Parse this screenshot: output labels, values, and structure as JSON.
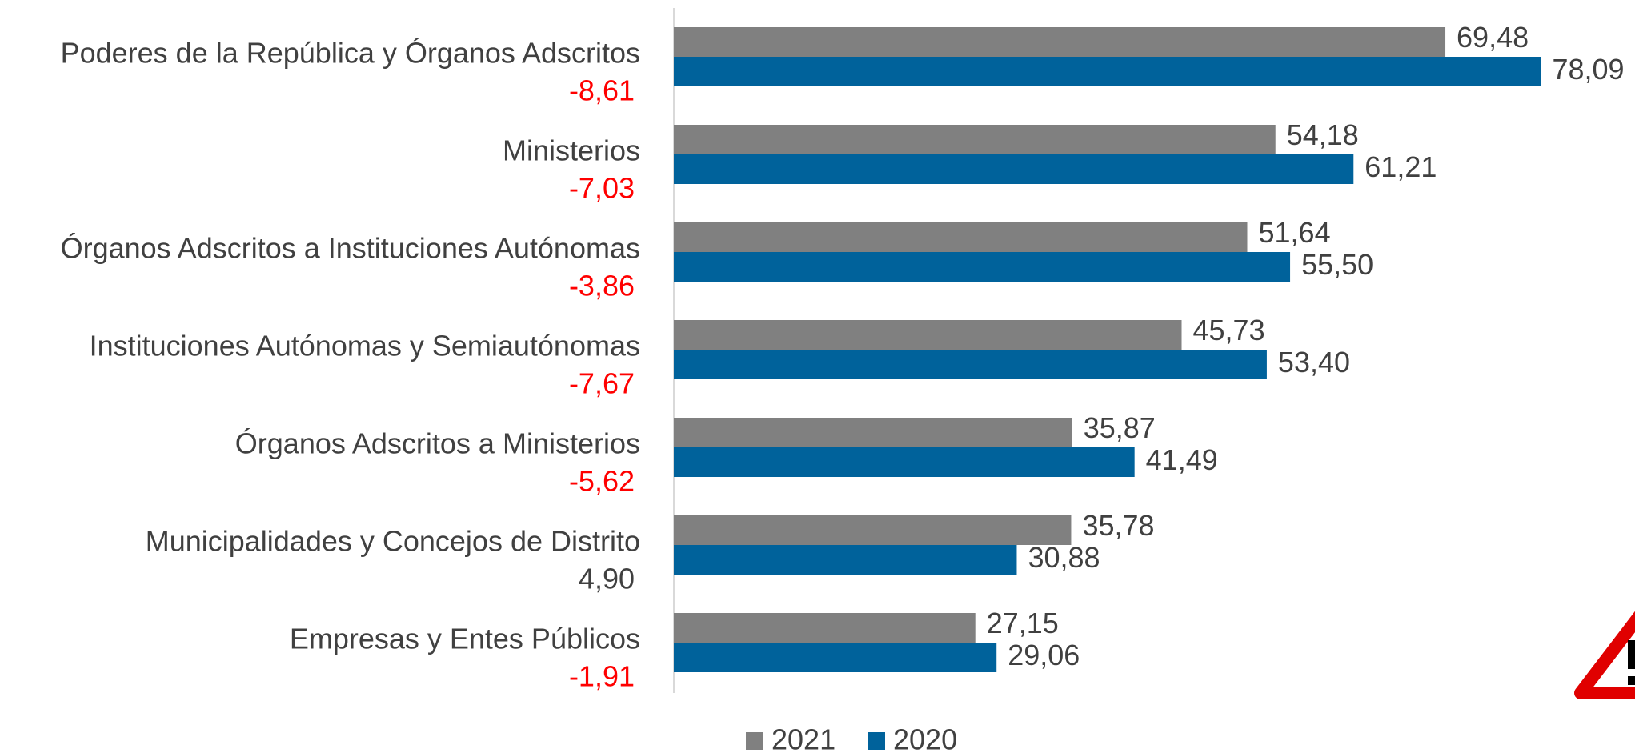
{
  "chart_data": {
    "type": "barh",
    "categories": [
      "Poderes de la República y Órganos Adscritos",
      "Ministerios",
      "Órganos Adscritos a Instituciones Autónomas",
      "Instituciones Autónomas y Semiautónomas",
      "Órganos Adscritos a Ministerios",
      "Municipalidades y Concejos de Distrito",
      "Empresas y Entes Públicos"
    ],
    "differences": [
      -8.61,
      -7.03,
      -3.86,
      -7.67,
      -5.62,
      4.9,
      -1.91
    ],
    "difference_labels": [
      "-8,61",
      "-7,03",
      "-3,86",
      "-7,67",
      "-5,62",
      "4,90",
      "-1,91"
    ],
    "negative_color": "#ff0000",
    "positive_color": "#404040",
    "series": [
      {
        "name": "2021",
        "color": "#808080",
        "values": [
          69.48,
          54.18,
          51.64,
          45.73,
          35.87,
          35.78,
          27.15
        ],
        "value_labels": [
          "69,48",
          "54,18",
          "51,64",
          "45,73",
          "35,87",
          "35,78",
          "27,15"
        ]
      },
      {
        "name": "2020",
        "color": "#00629b",
        "values": [
          78.09,
          61.21,
          55.5,
          53.4,
          41.49,
          30.88,
          29.06
        ],
        "value_labels": [
          "78,09",
          "61,21",
          "55,50",
          "53,40",
          "41,49",
          "30,88",
          "29,06"
        ]
      }
    ],
    "xlim": [
      0,
      80
    ],
    "legend": "bottom"
  }
}
